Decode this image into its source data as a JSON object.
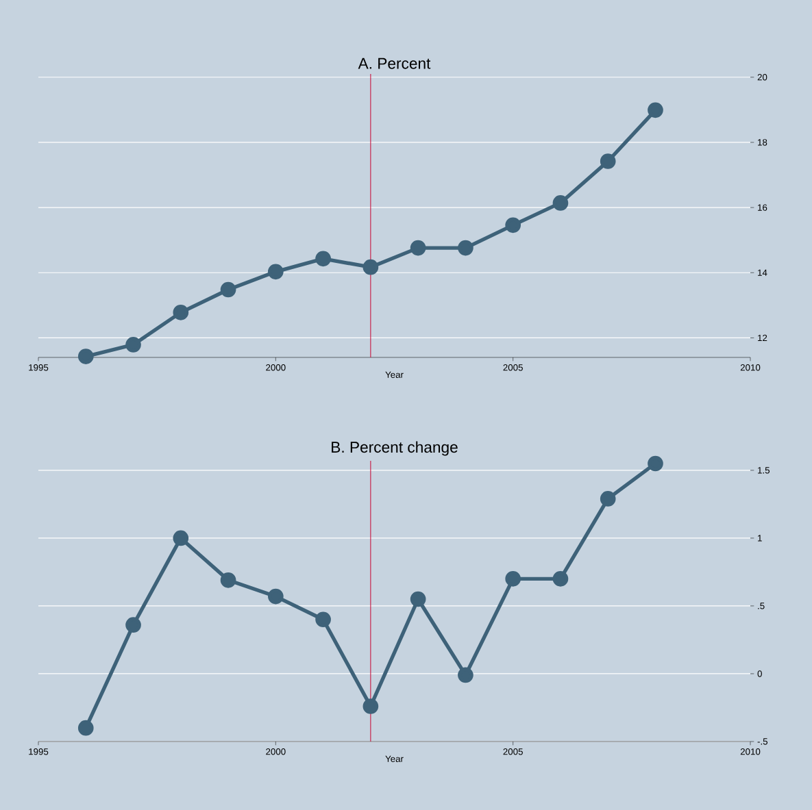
{
  "chart_data": [
    {
      "type": "line",
      "title": "A. Percent",
      "xlabel": "Year",
      "x": [
        1996,
        1997,
        1998,
        1999,
        2000,
        2001,
        2002,
        2003,
        2004,
        2005,
        2006,
        2007,
        2008
      ],
      "series": [
        {
          "color": "#3e6279",
          "values": [
            11.43,
            11.79,
            12.78,
            13.48,
            14.03,
            14.43,
            14.17,
            14.76,
            14.76,
            15.46,
            16.14,
            17.42,
            18.99
          ]
        }
      ],
      "xlim": [
        1995,
        2010
      ],
      "xticks": [
        1995,
        2000,
        2005,
        2010
      ],
      "ylim": [
        11.4,
        20.1
      ],
      "yticks": [
        12,
        14,
        16,
        18,
        20
      ],
      "grid": "y",
      "marker": "circle",
      "line_style": "solid",
      "ref_lines": [
        {
          "axis": "x",
          "value": 2002,
          "color": "#c8103c"
        }
      ]
    },
    {
      "type": "line",
      "title": "B. Percent change",
      "xlabel": "Year",
      "x": [
        1996,
        1997,
        1998,
        1999,
        2000,
        2001,
        2002,
        2003,
        2004,
        2005,
        2006,
        2007,
        2008
      ],
      "series": [
        {
          "color": "#3e6279",
          "values": [
            -0.4,
            0.36,
            1.0,
            0.69,
            0.57,
            0.4,
            -0.24,
            0.55,
            -0.01,
            0.7,
            0.7,
            1.29,
            1.55
          ]
        }
      ],
      "xlim": [
        1995,
        2010
      ],
      "xticks": [
        1995,
        2000,
        2005,
        2010
      ],
      "ylim": [
        -0.5,
        1.57
      ],
      "yticks": [
        {
          "value": -0.5,
          "label": "-.5"
        },
        0,
        {
          "value": 0.5,
          "label": ".5"
        },
        1,
        1.5
      ],
      "grid": "y",
      "marker": "circle",
      "line_style": "solid",
      "ref_lines": [
        {
          "axis": "x",
          "value": 2002,
          "color": "#c8103c"
        }
      ]
    }
  ]
}
